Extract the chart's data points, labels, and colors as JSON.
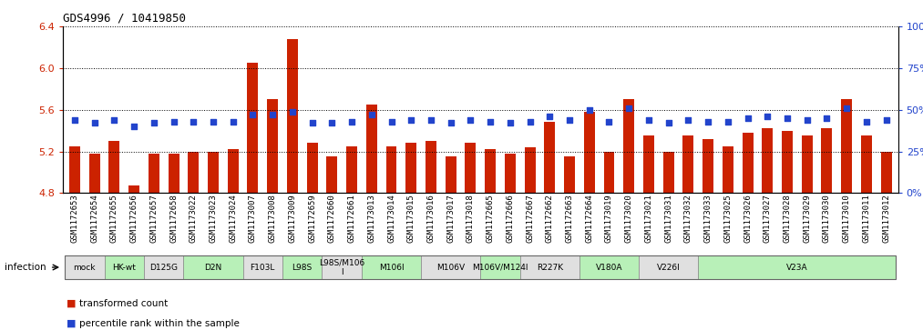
{
  "title": "GDS4996 / 10419850",
  "gsm_labels": [
    "GSM1172653",
    "GSM1172654",
    "GSM1172655",
    "GSM1172656",
    "GSM1172657",
    "GSM1172658",
    "GSM1173022",
    "GSM1173023",
    "GSM1173024",
    "GSM1173007",
    "GSM1173008",
    "GSM1173009",
    "GSM1172659",
    "GSM1172660",
    "GSM1172661",
    "GSM1173013",
    "GSM1173014",
    "GSM1173015",
    "GSM1173016",
    "GSM1173017",
    "GSM1173018",
    "GSM1172665",
    "GSM1172666",
    "GSM1172667",
    "GSM1172662",
    "GSM1172663",
    "GSM1172664",
    "GSM1173019",
    "GSM1173020",
    "GSM1173021",
    "GSM1173031",
    "GSM1173032",
    "GSM1173033",
    "GSM1173025",
    "GSM1173026",
    "GSM1173027",
    "GSM1173028",
    "GSM1173029",
    "GSM1173030",
    "GSM1173010",
    "GSM1173011",
    "GSM1173012"
  ],
  "bar_values": [
    5.25,
    5.18,
    5.3,
    4.87,
    5.18,
    5.18,
    5.2,
    5.2,
    5.22,
    6.05,
    5.7,
    6.28,
    5.28,
    5.15,
    5.25,
    5.65,
    5.25,
    5.28,
    5.3,
    5.15,
    5.28,
    5.22,
    5.18,
    5.24,
    5.48,
    5.15,
    5.58,
    5.2,
    5.7,
    5.35,
    5.2,
    5.35,
    5.32,
    5.25,
    5.38,
    5.42,
    5.4,
    5.35,
    5.42,
    5.7,
    5.35,
    5.2
  ],
  "dot_values": [
    44,
    42,
    44,
    40,
    42,
    43,
    43,
    43,
    43,
    47,
    47,
    49,
    42,
    42,
    43,
    47,
    43,
    44,
    44,
    42,
    44,
    43,
    42,
    43,
    46,
    44,
    50,
    43,
    51,
    44,
    42,
    44,
    43,
    43,
    45,
    46,
    45,
    44,
    45,
    51,
    43,
    44
  ],
  "ylim": [
    4.8,
    6.4
  ],
  "yticks": [
    4.8,
    5.2,
    5.6,
    6.0,
    6.4
  ],
  "y2ticks": [
    0,
    25,
    50,
    75,
    100
  ],
  "y2lim": [
    0,
    100
  ],
  "groups": [
    {
      "label": "mock",
      "start": 0,
      "end": 2,
      "color": "#e0e0e0"
    },
    {
      "label": "HK-wt",
      "start": 2,
      "end": 4,
      "color": "#b8f0b8"
    },
    {
      "label": "D125G",
      "start": 4,
      "end": 6,
      "color": "#e0e0e0"
    },
    {
      "label": "D2N",
      "start": 6,
      "end": 9,
      "color": "#b8f0b8"
    },
    {
      "label": "F103L",
      "start": 9,
      "end": 11,
      "color": "#e0e0e0"
    },
    {
      "label": "L98S",
      "start": 11,
      "end": 13,
      "color": "#b8f0b8"
    },
    {
      "label": "L98S/M106\nI",
      "start": 13,
      "end": 15,
      "color": "#e0e0e0"
    },
    {
      "label": "M106I",
      "start": 15,
      "end": 18,
      "color": "#b8f0b8"
    },
    {
      "label": "M106V",
      "start": 18,
      "end": 21,
      "color": "#e0e0e0"
    },
    {
      "label": "M106V/M124I",
      "start": 21,
      "end": 23,
      "color": "#b8f0b8"
    },
    {
      "label": "R227K",
      "start": 23,
      "end": 26,
      "color": "#e0e0e0"
    },
    {
      "label": "V180A",
      "start": 26,
      "end": 29,
      "color": "#b8f0b8"
    },
    {
      "label": "V226I",
      "start": 29,
      "end": 32,
      "color": "#e0e0e0"
    },
    {
      "label": "V23A",
      "start": 32,
      "end": 42,
      "color": "#b8f0b8"
    }
  ],
  "bar_color": "#cc2200",
  "dot_color": "#2244cc",
  "bar_width": 0.55,
  "xlabel_fontsize": 6.5,
  "ylabel_color_left": "#cc2200",
  "ylabel_color_right": "#2244cc",
  "infection_label": "infection",
  "legend_items": [
    "transformed count",
    "percentile rank within the sample"
  ]
}
